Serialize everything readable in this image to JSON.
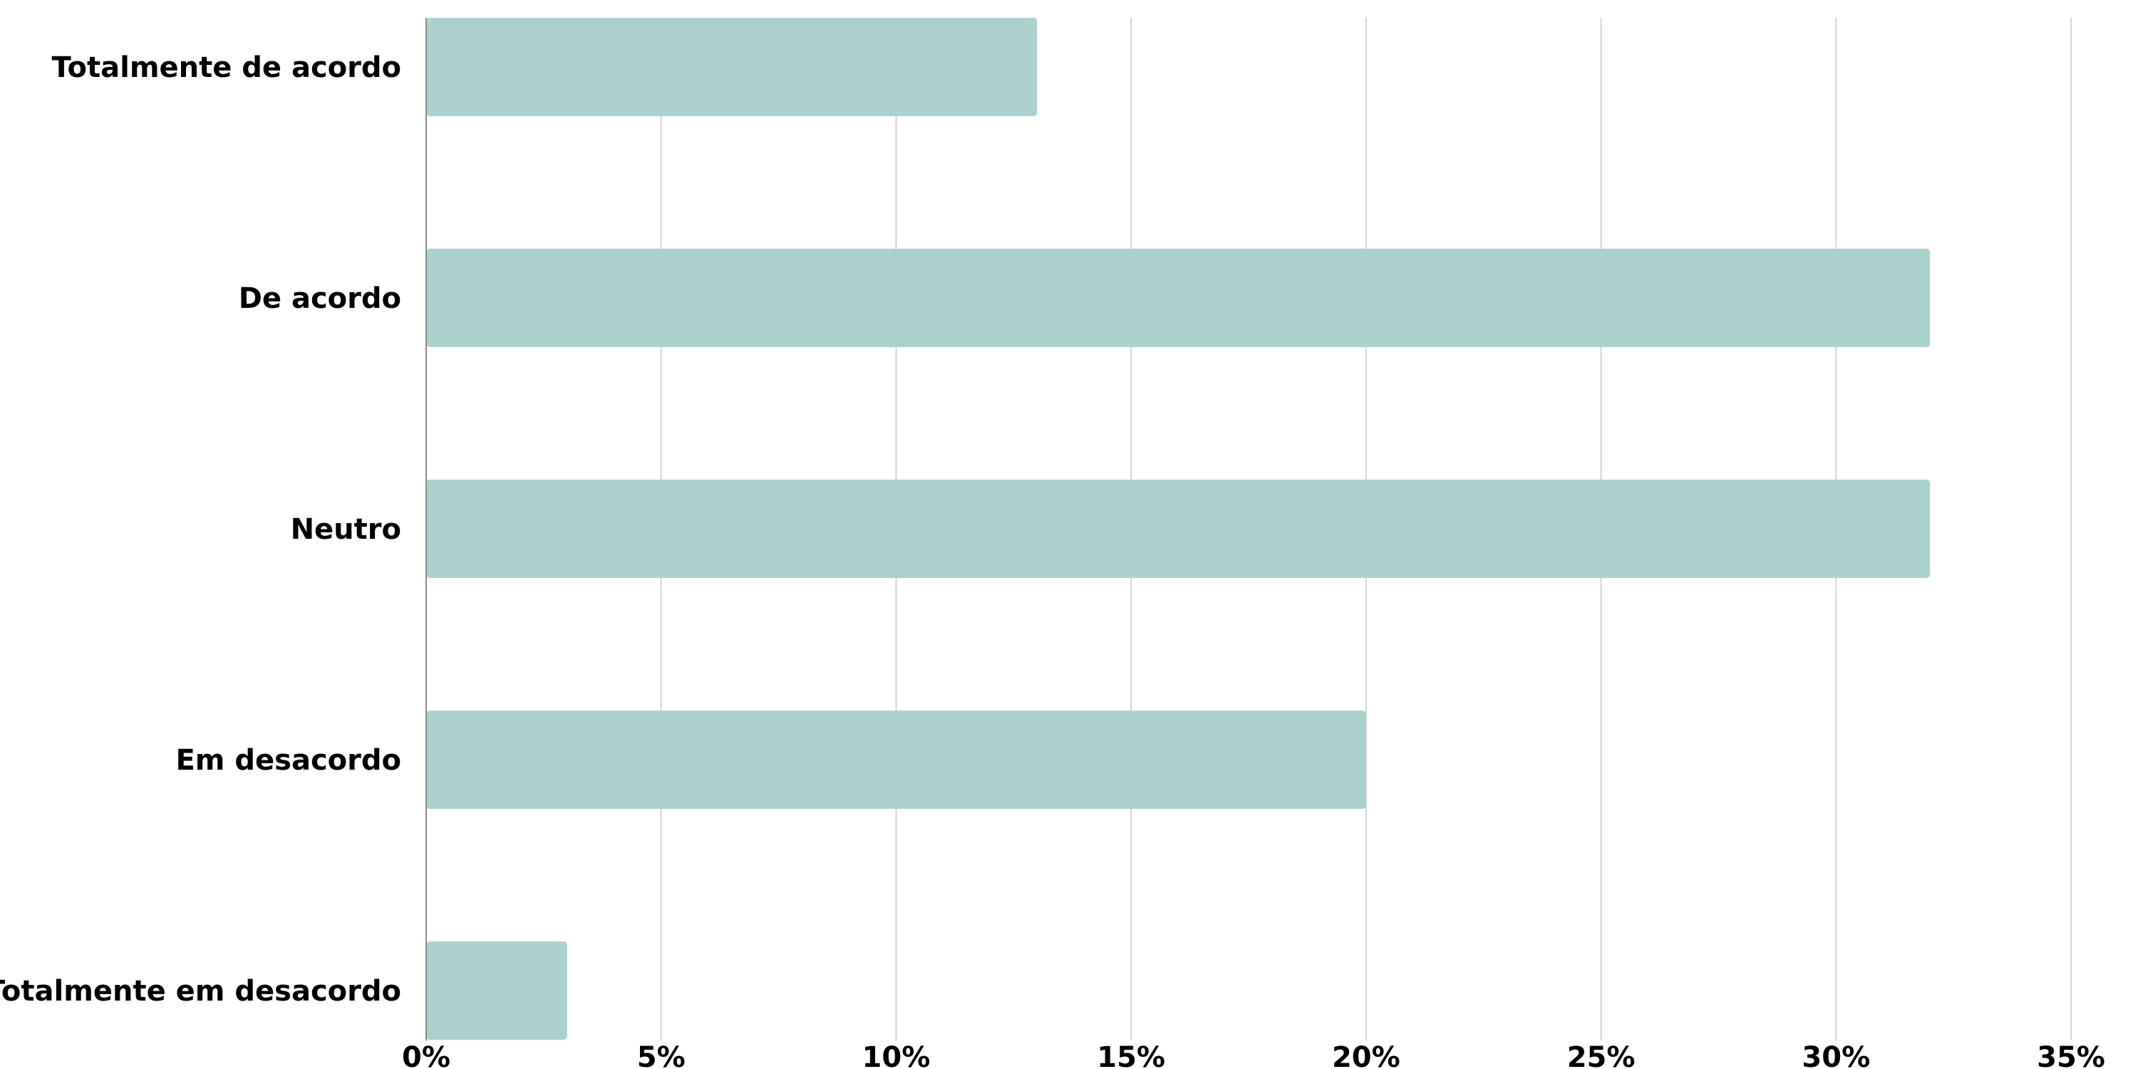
{
  "chart_data": {
    "type": "bar",
    "orientation": "horizontal",
    "title": "",
    "xlabel": "",
    "ylabel": "",
    "categories": [
      "Totalmente de acordo",
      "De acordo",
      "Neutro",
      "Em desacordo",
      "Totalmente em desacordo"
    ],
    "values": [
      13,
      32,
      32,
      20,
      3
    ],
    "xlim": [
      0,
      35
    ],
    "xticks": [
      0,
      5,
      10,
      15,
      20,
      25,
      30,
      35
    ],
    "xtick_labels": [
      "0%",
      "5%",
      "10%",
      "15%",
      "20%",
      "25%",
      "30%",
      "35%"
    ],
    "grid": "vertical",
    "legend": "none",
    "bar_color": "#abd1ce"
  }
}
